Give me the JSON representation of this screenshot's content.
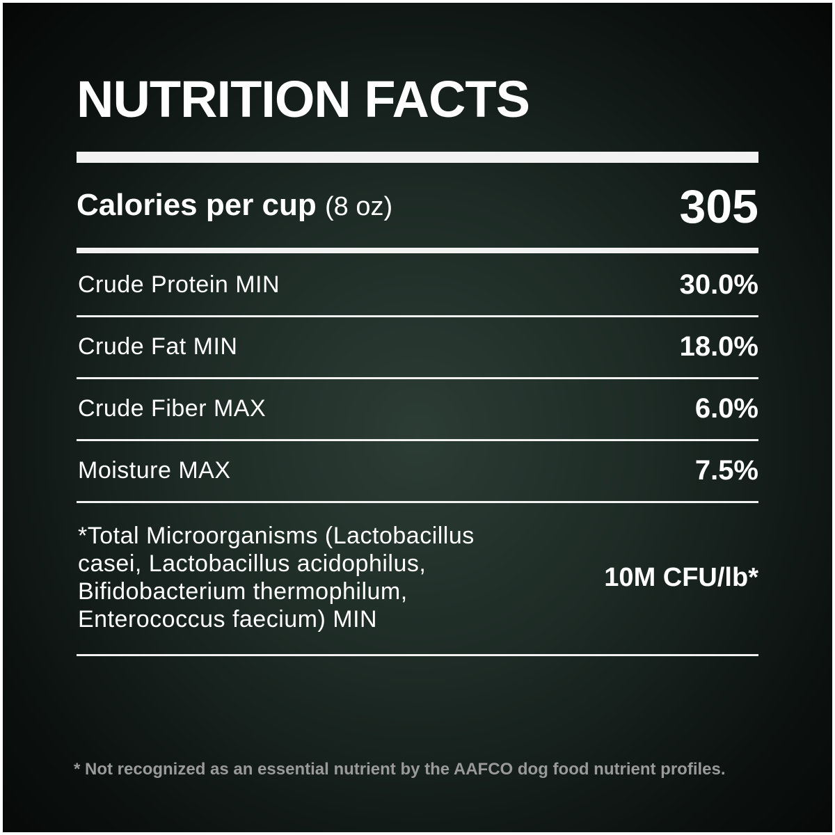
{
  "title": "NUTRITION FACTS",
  "calories": {
    "label": "Calories per cup",
    "unit": "(8 oz)",
    "value": "305"
  },
  "rows": [
    {
      "label": [
        "Crude Protein MIN"
      ],
      "value": "30.0%"
    },
    {
      "label": [
        "Crude Fat MIN"
      ],
      "value": "18.0%"
    },
    {
      "label": [
        "Crude Fiber MAX"
      ],
      "value": "6.0%"
    },
    {
      "label": [
        "Moisture MAX"
      ],
      "value": "7.5%"
    },
    {
      "label": [
        "*Total Microorganisms (Lactobacillus",
        "casei, Lactobacillus acidophilus,",
        "Bifidobacterium thermophilum,",
        "Enterococcus faecium) MIN"
      ],
      "value": "10M CFU/lb*"
    }
  ],
  "footnote": "* Not recognized as an essential nutrient by the AAFCO dog food nutrient profiles."
}
